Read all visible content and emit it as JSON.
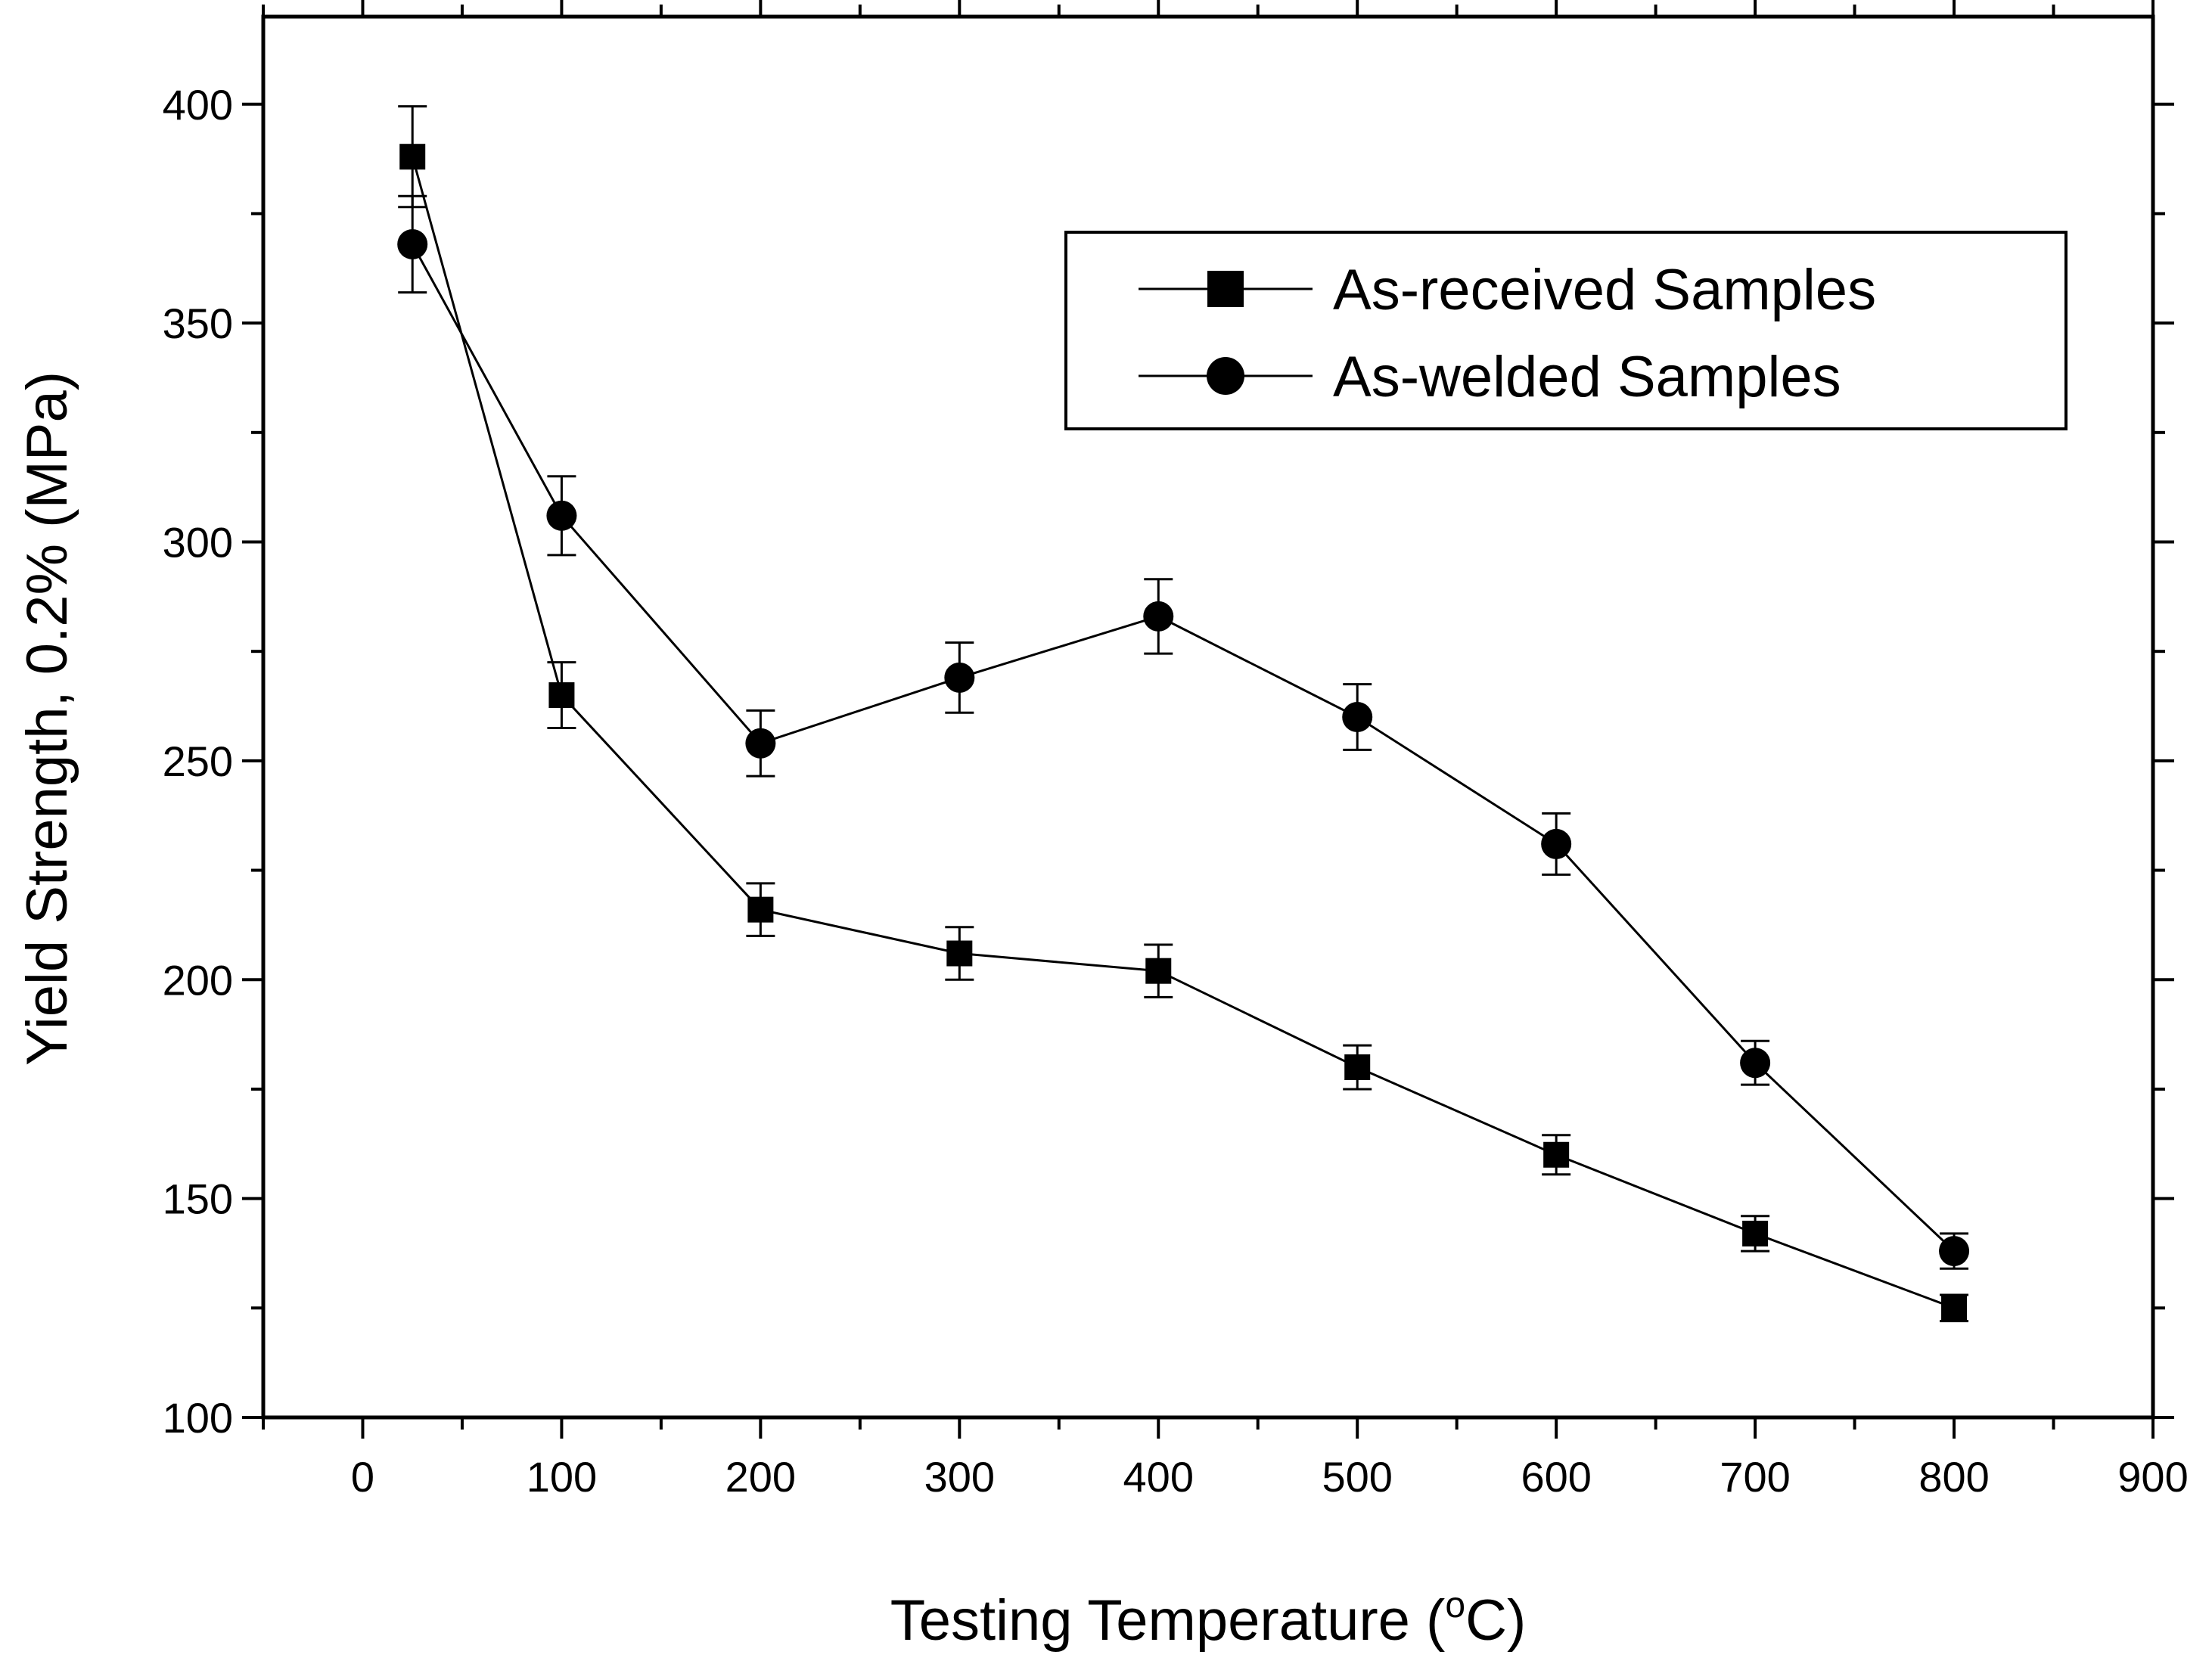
{
  "chart_data": {
    "type": "line",
    "title": "",
    "xlabel_prefix": "Testing Temperature (",
    "xlabel_sup": "o",
    "xlabel_suffix": "C)",
    "ylabel": "Yield Strength, 0.2% (MPa)",
    "xlim": [
      -50,
      900
    ],
    "ylim": [
      100,
      420
    ],
    "x_ticks": [
      0,
      100,
      200,
      300,
      400,
      500,
      600,
      700,
      800,
      900
    ],
    "y_ticks": [
      100,
      150,
      200,
      250,
      300,
      350,
      400
    ],
    "grid": false,
    "legend_position": "top-right",
    "series": [
      {
        "name": "As-received Samples",
        "marker": "square",
        "color": "#000000",
        "x": [
          25,
          100,
          200,
          300,
          400,
          500,
          600,
          700,
          800
        ],
        "values": [
          388,
          265,
          216,
          206,
          202,
          180,
          160,
          142,
          125
        ],
        "errors": [
          11.5,
          7.5,
          6,
          6,
          6,
          5,
          4.5,
          4,
          3
        ]
      },
      {
        "name": "As-welded Samples",
        "marker": "circle",
        "color": "#000000",
        "x": [
          25,
          100,
          200,
          300,
          400,
          500,
          600,
          700,
          800
        ],
        "values": [
          368,
          306,
          254,
          269,
          283,
          260,
          231,
          181,
          138
        ],
        "errors": [
          11,
          9,
          7.5,
          8,
          8.5,
          7.5,
          7,
          5,
          4
        ]
      }
    ]
  }
}
